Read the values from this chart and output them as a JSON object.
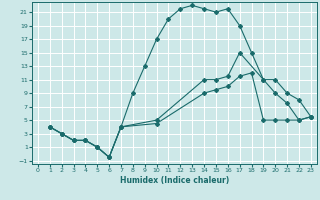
{
  "xlabel": "Humidex (Indice chaleur)",
  "background_color": "#cde8e8",
  "grid_color": "#ffffff",
  "line_color": "#1a6b6b",
  "xlim": [
    -0.5,
    23.5
  ],
  "ylim": [
    -1.5,
    22.5
  ],
  "xticks": [
    0,
    1,
    2,
    3,
    4,
    5,
    6,
    7,
    8,
    9,
    10,
    11,
    12,
    13,
    14,
    15,
    16,
    17,
    18,
    19,
    20,
    21,
    22,
    23
  ],
  "yticks": [
    -1,
    1,
    3,
    5,
    7,
    9,
    11,
    13,
    15,
    17,
    19,
    21
  ],
  "series": [
    {
      "x": [
        1,
        2,
        3,
        4,
        5,
        6,
        7,
        8,
        9,
        10,
        11,
        12,
        13,
        14,
        15,
        16,
        17,
        18,
        19,
        20,
        21,
        22,
        23
      ],
      "y": [
        4,
        3,
        2,
        2,
        1,
        -0.5,
        4,
        9,
        13,
        17,
        20,
        21.5,
        22,
        21.5,
        21,
        21.5,
        19,
        15,
        11,
        9,
        7.5,
        5,
        5.5
      ]
    },
    {
      "x": [
        1,
        2,
        3,
        4,
        5,
        6,
        7,
        10,
        14,
        15,
        16,
        17,
        19,
        20,
        21,
        22,
        23
      ],
      "y": [
        4,
        3,
        2,
        2,
        1,
        -0.5,
        4,
        5,
        11,
        11,
        11.5,
        15,
        11,
        11,
        9,
        8,
        5.5
      ]
    },
    {
      "x": [
        1,
        2,
        3,
        4,
        5,
        6,
        7,
        10,
        14,
        15,
        16,
        17,
        18,
        19,
        20,
        21,
        22,
        23
      ],
      "y": [
        4,
        3,
        2,
        2,
        1,
        -0.5,
        4,
        4.5,
        9,
        9.5,
        10,
        11.5,
        12,
        5,
        5,
        5,
        5,
        5.5
      ]
    }
  ]
}
